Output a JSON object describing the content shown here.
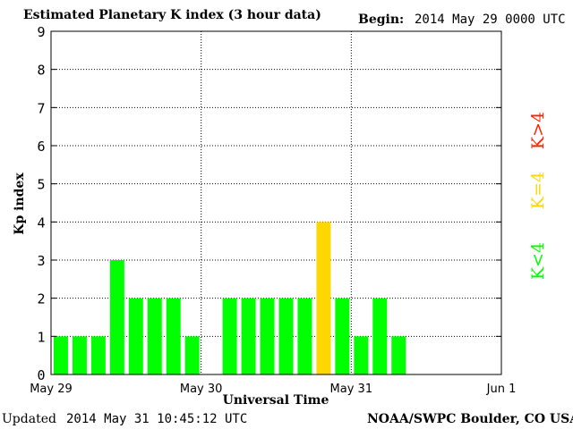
{
  "header": {
    "title": "Estimated Planetary K index (3 hour data)",
    "begin_label": "Begin:",
    "begin_value": "2014 May 29 0000 UTC"
  },
  "footer": {
    "updated_label": "Updated",
    "updated_value": "2014 May 31 10:45:12 UTC",
    "credit": "NOAA/SWPC Boulder, CO USA"
  },
  "legend": {
    "low": "K<4",
    "mid": "K=4",
    "high": "K>4"
  },
  "colors": {
    "low": "#00ff00",
    "mid": "#ffd700",
    "high": "#ff2200",
    "grid": "#000000"
  },
  "chart_data": {
    "type": "bar",
    "title": "Estimated Planetary K index (3 hour data)",
    "xlabel": "Universal Time",
    "ylabel": "Kp index",
    "ylim": [
      0,
      9
    ],
    "yticks": [
      0,
      1,
      2,
      3,
      4,
      5,
      6,
      7,
      8,
      9
    ],
    "xticks": [
      "May 29",
      "May 30",
      "May 31",
      "Jun 1"
    ],
    "bins_per_day": 8,
    "total_bins": 24,
    "grid": true,
    "legend_placement": "right",
    "values": [
      1,
      1,
      1,
      3,
      2,
      2,
      2,
      1,
      0,
      2,
      2,
      2,
      2,
      2,
      4,
      2,
      1,
      2,
      1
    ]
  }
}
